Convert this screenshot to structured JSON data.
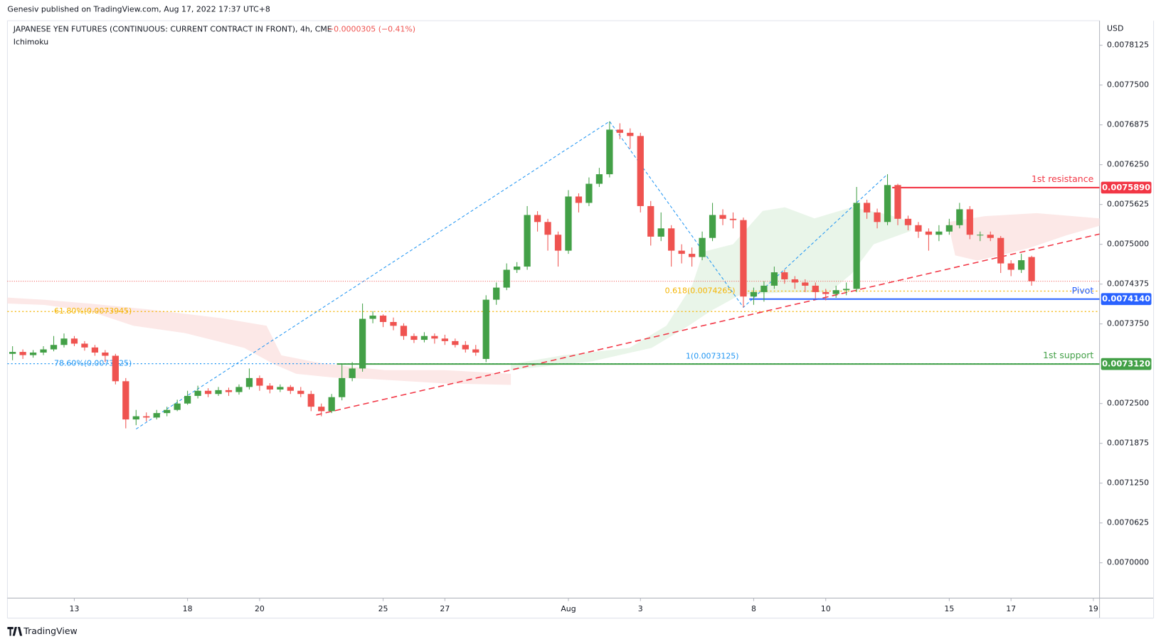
{
  "header": {
    "publisher": "Genesiv published on TradingView.com, Aug 17, 2022 17:37 UTC+8",
    "footer": "TradingView"
  },
  "chart_data": {
    "type": "candlestick",
    "title": "JAPANESE YEN FUTURES (CONTINUOUS: CURRENT CONTRACT IN FRONT), 4h, CME",
    "change": "−0.0000305 (−0.41%)",
    "indicator": "Ichimoku",
    "y_label": "USD",
    "up_color": "#43a047",
    "down_color": "#ef5350",
    "grid": false,
    "open": [
      0.007328,
      0.007331,
      0.007326,
      0.00733,
      0.007335,
      0.007342,
      0.007352,
      0.007344,
      0.007338,
      0.00733,
      0.007325,
      0.007285,
      0.007225,
      0.00723,
      0.007228,
      0.007235,
      0.00724,
      0.00725,
      0.007262,
      0.00727,
      0.007265,
      0.007271,
      0.007268,
      0.007276,
      0.00729,
      0.007278,
      0.007272,
      0.007276,
      0.00727,
      0.007265,
      0.007245,
      0.007238,
      0.00726,
      0.00729,
      0.007305,
      0.007383,
      0.007388,
      0.007378,
      0.007372,
      0.007356,
      0.00735,
      0.007356,
      0.007352,
      0.007348,
      0.007342,
      0.007335,
      0.00732,
      0.007413,
      0.007432,
      0.00746,
      0.007465,
      0.007546,
      0.007535,
      0.007515,
      0.00749,
      0.007575,
      0.007565,
      0.007595,
      0.00761,
      0.00768,
      0.007675,
      0.00767,
      0.00756,
      0.007512,
      0.007525,
      0.00749,
      0.007485,
      0.00748,
      0.00751,
      0.007546,
      0.00754,
      0.007538,
      0.007418,
      0.007425,
      0.007435,
      0.007456,
      0.007445,
      0.00744,
      0.007435,
      0.007425,
      0.007422,
      0.007428,
      0.00743,
      0.007565,
      0.00755,
      0.007535,
      0.007593,
      0.00754,
      0.00753,
      0.00752,
      0.007515,
      0.00752,
      0.00753,
      0.007555,
      0.007515,
      0.007515,
      0.00751,
      0.00747,
      0.00746,
      0.00748
    ],
    "close": [
      0.007331,
      0.007326,
      0.00733,
      0.007335,
      0.007342,
      0.007352,
      0.007344,
      0.007338,
      0.00733,
      0.007325,
      0.007285,
      0.007225,
      0.00723,
      0.007228,
      0.007235,
      0.00724,
      0.00725,
      0.007262,
      0.00727,
      0.007265,
      0.007271,
      0.007268,
      0.007276,
      0.00729,
      0.007278,
      0.007272,
      0.007276,
      0.00727,
      0.007265,
      0.007245,
      0.007238,
      0.00726,
      0.00729,
      0.007305,
      0.007383,
      0.007388,
      0.007378,
      0.007372,
      0.007356,
      0.00735,
      0.007356,
      0.007352,
      0.007348,
      0.007342,
      0.007335,
      0.00733,
      0.007413,
      0.007432,
      0.00746,
      0.007465,
      0.007546,
      0.007535,
      0.007515,
      0.00749,
      0.007575,
      0.007565,
      0.007595,
      0.00761,
      0.00768,
      0.007675,
      0.00767,
      0.00756,
      0.007512,
      0.007525,
      0.00749,
      0.007485,
      0.00748,
      0.00751,
      0.007546,
      0.00754,
      0.007538,
      0.007418,
      0.007425,
      0.007435,
      0.007456,
      0.007445,
      0.00744,
      0.007435,
      0.007425,
      0.007422,
      0.007428,
      0.00743,
      0.007565,
      0.00755,
      0.007535,
      0.007593,
      0.00754,
      0.00753,
      0.00752,
      0.007515,
      0.00752,
      0.00753,
      0.007555,
      0.007515,
      0.007515,
      0.00751,
      0.00747,
      0.00746,
      0.007475,
      0.007442
    ],
    "high": [
      0.00734,
      0.007335,
      0.007334,
      0.00734,
      0.007356,
      0.00736,
      0.007356,
      0.007348,
      0.007342,
      0.007334,
      0.007328,
      0.00729,
      0.00724,
      0.007236,
      0.00724,
      0.007245,
      0.007256,
      0.00727,
      0.007278,
      0.007274,
      0.007276,
      0.007275,
      0.00728,
      0.007305,
      0.007294,
      0.007282,
      0.00728,
      0.007279,
      0.007276,
      0.00727,
      0.00725,
      0.007265,
      0.007312,
      0.007315,
      0.007407,
      0.007395,
      0.00739,
      0.007385,
      0.007376,
      0.00736,
      0.007362,
      0.00736,
      0.007358,
      0.007352,
      0.007348,
      0.007342,
      0.00742,
      0.00744,
      0.00747,
      0.007472,
      0.00756,
      0.007552,
      0.00754,
      0.00752,
      0.007585,
      0.00758,
      0.007605,
      0.00762,
      0.007693,
      0.00769,
      0.007682,
      0.007675,
      0.007568,
      0.00755,
      0.00753,
      0.0075,
      0.007495,
      0.00752,
      0.007565,
      0.007555,
      0.00755,
      0.007542,
      0.007432,
      0.007442,
      0.007465,
      0.00746,
      0.00745,
      0.007445,
      0.00744,
      0.00743,
      0.007435,
      0.00744,
      0.00759,
      0.00757,
      0.007556,
      0.00761,
      0.007595,
      0.007545,
      0.007535,
      0.007525,
      0.00753,
      0.00754,
      0.007565,
      0.00756,
      0.00752,
      0.00752,
      0.007513,
      0.007475,
      0.007485,
      0.007482
    ],
    "low": [
      0.007318,
      0.00732,
      0.007322,
      0.007326,
      0.007332,
      0.007338,
      0.00734,
      0.007333,
      0.007325,
      0.007315,
      0.00728,
      0.007211,
      0.007216,
      0.007222,
      0.007225,
      0.00723,
      0.007238,
      0.007248,
      0.007258,
      0.00726,
      0.007262,
      0.007262,
      0.007264,
      0.007272,
      0.00727,
      0.007266,
      0.007268,
      0.007265,
      0.00726,
      0.007238,
      0.00723,
      0.007235,
      0.007255,
      0.007285,
      0.0073,
      0.007376,
      0.00737,
      0.007365,
      0.00735,
      0.007345,
      0.007346,
      0.007344,
      0.007342,
      0.007338,
      0.00733,
      0.007325,
      0.007315,
      0.007405,
      0.007428,
      0.007455,
      0.00746,
      0.00752,
      0.00749,
      0.007465,
      0.007485,
      0.00755,
      0.00756,
      0.00759,
      0.007605,
      0.007665,
      0.00765,
      0.00755,
      0.007498,
      0.007505,
      0.007465,
      0.00747,
      0.007465,
      0.007475,
      0.007505,
      0.00753,
      0.007525,
      0.007401,
      0.007405,
      0.00741,
      0.00743,
      0.007438,
      0.00743,
      0.007425,
      0.007415,
      0.007412,
      0.007416,
      0.00742,
      0.007425,
      0.00754,
      0.007525,
      0.00753,
      0.00753,
      0.007522,
      0.00751,
      0.00749,
      0.007505,
      0.007515,
      0.007525,
      0.007508,
      0.007505,
      0.007505,
      0.007455,
      0.00745,
      0.007455,
      0.007435
    ],
    "xlim": [
      -0.5,
      105.6
    ],
    "xticks": [
      {
        "value": 6,
        "label": "13"
      },
      {
        "value": 17,
        "label": "18"
      },
      {
        "value": 24,
        "label": "20"
      },
      {
        "value": 36,
        "label": "25"
      },
      {
        "value": 42,
        "label": "27"
      },
      {
        "value": 54,
        "label": "Aug"
      },
      {
        "value": 61,
        "label": "3"
      },
      {
        "value": 72,
        "label": "8"
      },
      {
        "value": 79,
        "label": "10"
      },
      {
        "value": 91,
        "label": "15"
      },
      {
        "value": 97,
        "label": "17"
      },
      {
        "value": 105,
        "label": "19"
      }
    ],
    "ylim": [
      0.0069445,
      0.007851
    ],
    "yticks": [
      {
        "value": 0.0078125,
        "label": "0.0078125"
      },
      {
        "value": 0.00775,
        "label": "0.0077500"
      },
      {
        "value": 0.0076875,
        "label": "0.0076875"
      },
      {
        "value": 0.007625,
        "label": "0.0076250"
      },
      {
        "value": 0.0075625,
        "label": "0.0075625"
      },
      {
        "value": 0.0075,
        "label": "0.0075000"
      },
      {
        "value": 0.0074375,
        "label": "0.0074375"
      },
      {
        "value": 0.007375,
        "label": "0.0073750"
      },
      {
        "value": 0.00725,
        "label": "0.0072500"
      },
      {
        "value": 0.0071875,
        "label": "0.0071875"
      },
      {
        "value": 0.007125,
        "label": "0.0071250"
      },
      {
        "value": 0.0070625,
        "label": "0.0070625"
      },
      {
        "value": 0.007,
        "label": "0.0070000"
      }
    ],
    "levels": [
      {
        "name": "1st resistance",
        "color": "#f23645",
        "value": 0.007589,
        "label": "0.0075890"
      },
      {
        "name": "Pivot",
        "color": "#2962ff",
        "value": 0.007414,
        "label": "0.0074140"
      },
      {
        "name": "1st support",
        "color": "#43a047",
        "value": 0.007312,
        "label": "0.0073120"
      }
    ],
    "fib_levels": [
      {
        "value": 0.0073945,
        "label": "61.80%(0.0073945)",
        "color": "#f5b400"
      },
      {
        "value": 0.0073125,
        "label": "78.60%(0.0073125)",
        "color": "#2196f3"
      },
      {
        "value": 0.0074265,
        "label": "0.618(0.0074265)",
        "color": "#f5b400"
      },
      {
        "value": 0.0073125,
        "label": "1(0.0073125)",
        "color": "#2196f3"
      }
    ],
    "zigzag": {
      "color": "#2196f3",
      "x": [
        12,
        58,
        71,
        85
      ],
      "y": [
        0.00721,
        0.007693,
        0.007401,
        0.00761
      ]
    },
    "trendline": {
      "color": "#f23645",
      "x": [
        29.5,
        105.6
      ],
      "y": [
        0.007232,
        0.0075161
      ]
    }
  }
}
